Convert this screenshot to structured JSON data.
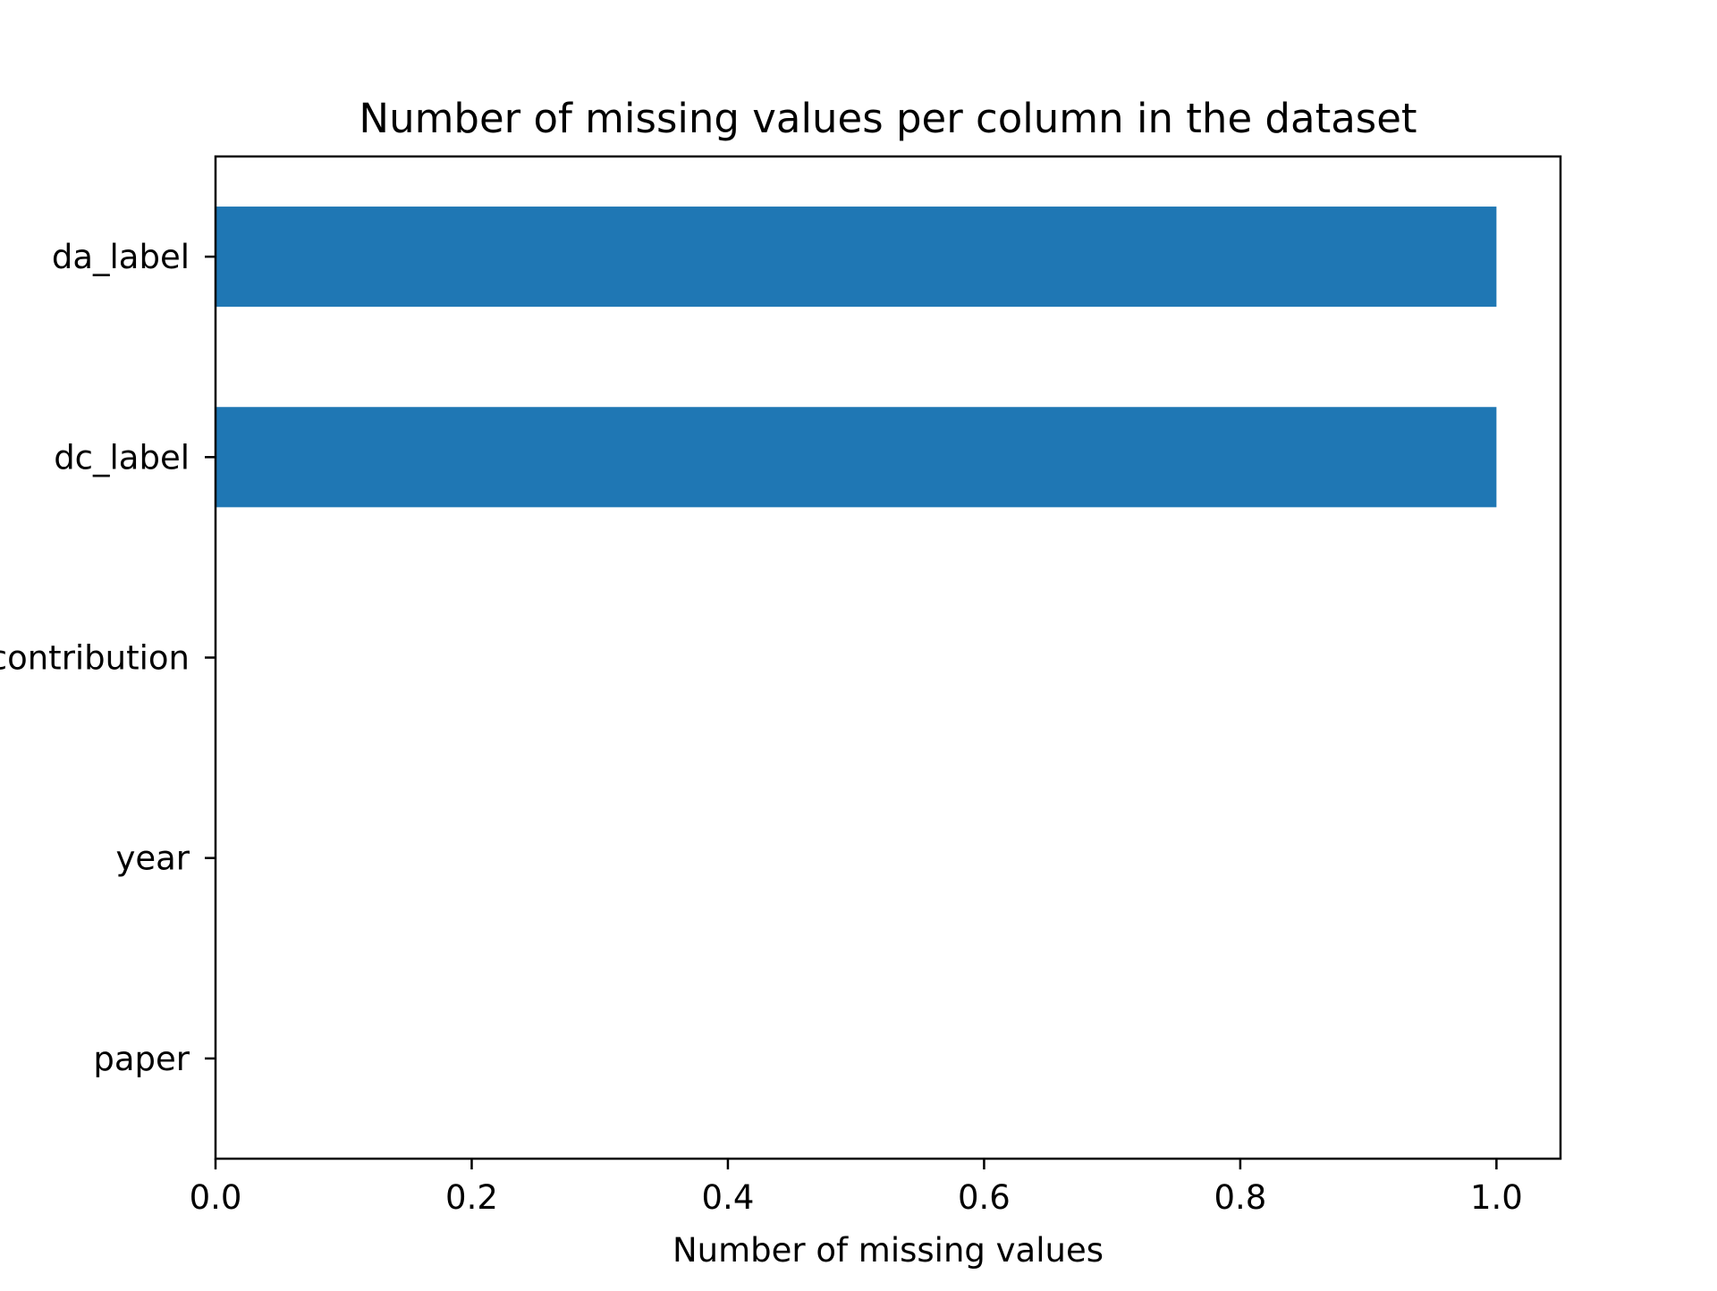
{
  "chart_data": {
    "type": "bar",
    "orientation": "horizontal",
    "title": "Number of missing values per column in the dataset",
    "xlabel": "Number of missing values",
    "ylabel": "",
    "categories": [
      "paper",
      "year",
      "contribution",
      "dc_label",
      "da_label"
    ],
    "values": [
      0,
      0,
      0,
      1,
      1
    ],
    "xlim": [
      0,
      1.05
    ],
    "xticks": [
      0.0,
      0.2,
      0.4,
      0.6,
      0.8,
      1.0
    ],
    "xtick_labels": [
      "0.0",
      "0.2",
      "0.4",
      "0.6",
      "0.8",
      "1.0"
    ],
    "grid": false,
    "legend": "none",
    "bar_color": "#1f77b4"
  }
}
